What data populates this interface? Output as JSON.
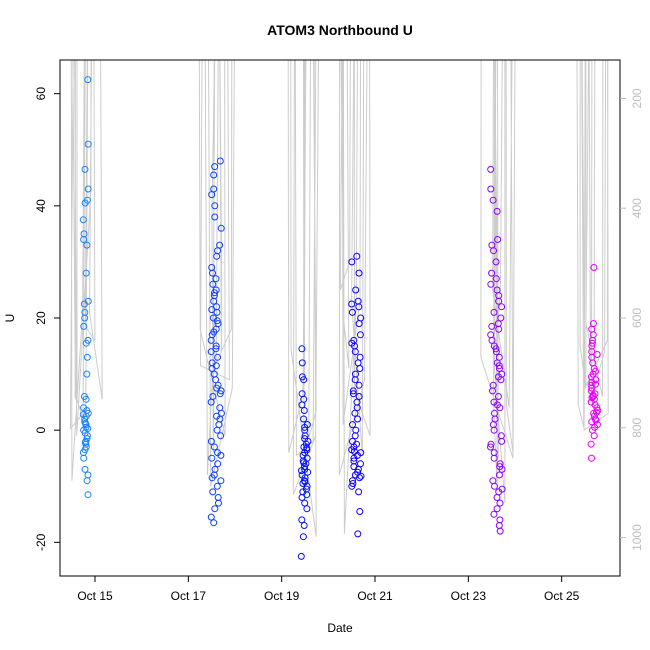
{
  "chart_data": {
    "type": "scatter",
    "title": "ATOM3 Northbound U",
    "xlabel": "Date",
    "ylabel": "U",
    "x_ticks": [
      "Oct 15",
      "Oct 17",
      "Oct 19",
      "Oct 21",
      "Oct 23",
      "Oct 25"
    ],
    "x_tick_days": [
      15,
      17,
      19,
      21,
      23,
      25
    ],
    "xlim": [
      14.25,
      26.25
    ],
    "ylim": [
      -26,
      66
    ],
    "y_ticks": [
      -20,
      0,
      20,
      40,
      60
    ],
    "right_axis": {
      "ticks": [
        200,
        400,
        600,
        800,
        1000
      ],
      "color": "#bebebe",
      "ylim": [
        1070,
        130
      ]
    },
    "grid": false,
    "point_style": "open-circle",
    "color_gradient": [
      "#1e90ff",
      "#0000ff",
      "#ff00ff"
    ],
    "profile_line_color": "#cccccc",
    "casts": [
      {
        "day": 14.8,
        "spread": 0.12,
        "values": [
          62.5,
          51,
          46.5,
          43,
          41,
          40.5,
          37.5,
          35,
          34,
          33,
          28,
          23,
          22.5,
          21,
          20,
          18.5,
          16,
          15.5,
          13,
          10,
          6,
          5.5,
          4,
          3.5,
          3,
          2.5,
          2,
          1.5,
          1,
          0.5,
          0,
          -0.5,
          -1,
          -1.5,
          -2,
          -2.5,
          -3,
          -3.5,
          -4,
          -5,
          -7,
          -8,
          -9,
          -11.5,
          1.2,
          0.3,
          -2.2,
          2.8
        ]
      },
      {
        "day": 17.6,
        "spread": 0.22,
        "values": [
          48,
          47,
          45.5,
          43,
          42,
          40,
          38,
          36,
          33,
          32,
          31,
          29,
          27,
          26,
          25,
          24,
          23,
          22,
          21,
          20,
          19.5,
          19,
          18,
          17,
          16,
          15,
          14.5,
          14,
          13,
          12,
          11,
          10,
          9,
          8,
          7,
          6.5,
          6,
          5,
          4,
          3,
          2,
          1,
          0,
          -1,
          -2,
          -3,
          -4,
          -5,
          -6,
          -7,
          -8,
          -9,
          -10,
          -11,
          -12,
          -13,
          -15.5,
          -16.5,
          28,
          24.5,
          21.5,
          17.5,
          11.5,
          7.5,
          2.5,
          -4.5,
          -8.5,
          -14
        ]
      },
      {
        "day": 19.5,
        "spread": 0.16,
        "values": [
          14.5,
          12,
          9.5,
          9,
          6.5,
          5.5,
          4.5,
          3.5,
          2,
          1,
          0,
          -1,
          -2,
          -2.5,
          -3,
          -3.5,
          -4,
          -4.5,
          -5,
          -5.5,
          -6,
          -6.5,
          -7,
          -7.5,
          -8,
          -8.5,
          -9,
          -9.5,
          -10,
          -10.5,
          -11,
          -11.5,
          -12,
          -13,
          -14,
          -16,
          -17,
          -19,
          -22.5,
          -1.5,
          -3.2,
          -5.8,
          -7.2,
          -9.2,
          0.5
        ]
      },
      {
        "day": 20.6,
        "spread": 0.2,
        "values": [
          31,
          30,
          28,
          25,
          23,
          22,
          21,
          20,
          19,
          17,
          16,
          15,
          14,
          13,
          12,
          11,
          10,
          9,
          8,
          7,
          6,
          5,
          4,
          3,
          2,
          1,
          0,
          -1,
          -2,
          -2.5,
          -3,
          -3.5,
          -4,
          -4.5,
          -5,
          -5.5,
          -6,
          -6.5,
          -7,
          -7.5,
          -8,
          -8.5,
          -9,
          -9.5,
          -10,
          -11,
          -14.5,
          -18.5,
          22.5,
          15.5,
          6.5,
          -3.8,
          -8.2
        ]
      },
      {
        "day": 23.6,
        "spread": 0.25,
        "values": [
          46.5,
          43,
          41,
          39,
          34,
          33,
          32,
          30,
          28,
          27,
          26,
          25,
          24,
          23,
          22,
          21,
          20,
          19,
          18,
          17,
          16,
          15,
          14,
          13,
          12,
          11,
          10,
          9,
          8,
          7,
          6,
          5,
          4,
          3,
          2,
          1,
          0,
          -1,
          -2,
          -3,
          -4,
          -5,
          -6,
          -7,
          -8,
          -9,
          -10,
          -11,
          -12,
          -13,
          -14,
          -15,
          -16,
          -17,
          -18,
          11.5,
          9.5,
          4.5,
          -2.5,
          -6.5,
          -10.5,
          18.5,
          14.5
        ]
      },
      {
        "day": 25.7,
        "spread": 0.16,
        "values": [
          29,
          19,
          18,
          17,
          16,
          15.5,
          15,
          14,
          13,
          12,
          11,
          10,
          9.5,
          9,
          8.5,
          8,
          7.5,
          7,
          6.5,
          6,
          5.5,
          5,
          4.5,
          4,
          3.5,
          3,
          2.5,
          2,
          1.5,
          1,
          0.5,
          0,
          -1,
          -2.5,
          -5,
          10.5,
          8.2,
          5.8,
          3.2,
          1.8,
          13.5,
          6.2
        ]
      }
    ]
  }
}
